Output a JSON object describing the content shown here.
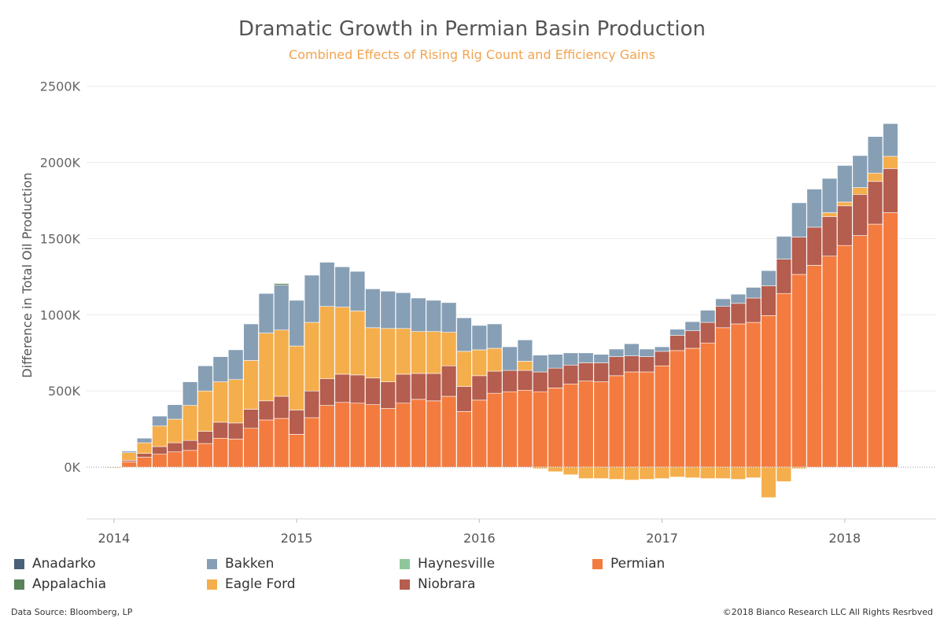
{
  "header": {
    "title": "Dramatic Growth in Permian Basin Production",
    "subtitle": "Combined Effects of Rising Rig Count and Efficiency Gains"
  },
  "footer": {
    "source": "Data Source: Bloomberg, LP",
    "copyright": "©2018 Bianco Research LLC  All Rights Resrbved"
  },
  "chart_data": {
    "type": "bar",
    "stacked": true,
    "title": "Dramatic Growth in Permian Basin Production",
    "subtitle": "Combined Effects of Rising Rig Count and Efficiency Gains",
    "ylabel": "Difference in Total Oil Production",
    "xlabel": "",
    "ylim": [
      -340,
      2550
    ],
    "yticks": [
      0,
      500,
      1000,
      1500,
      2000,
      2500
    ],
    "ytick_labels": [
      "0K",
      "500K",
      "1000K",
      "1500K",
      "2000K",
      "2500K"
    ],
    "xlim": [
      2013.85,
      2018.5
    ],
    "xticks": [
      2014,
      2015,
      2016,
      2017,
      2018
    ],
    "xtick_labels": [
      "2014",
      "2015",
      "2016",
      "2017",
      "2018"
    ],
    "grid": "horizontal",
    "legend_position": "bottom",
    "unit": "thousand barrels per day (K)",
    "x": [
      2014.0,
      2014.0833,
      2014.1667,
      2014.25,
      2014.3333,
      2014.4167,
      2014.5,
      2014.5833,
      2014.6667,
      2014.75,
      2014.8333,
      2014.9167,
      2015.0,
      2015.0833,
      2015.1667,
      2015.25,
      2015.3333,
      2015.4167,
      2015.5,
      2015.5833,
      2015.6667,
      2015.75,
      2015.8333,
      2015.9167,
      2016.0,
      2016.0833,
      2016.1667,
      2016.25,
      2016.3333,
      2016.4167,
      2016.5,
      2016.5833,
      2016.6667,
      2016.75,
      2016.8333,
      2016.9167,
      2017.0,
      2017.0833,
      2017.1667,
      2017.25,
      2017.3333,
      2017.4167,
      2017.5,
      2017.5833,
      2017.6667,
      2017.75,
      2017.8333,
      2017.9167,
      2018.0,
      2018.0833,
      2018.1667,
      2018.25,
      2018.3333
    ],
    "series": [
      {
        "name": "Permian",
        "color": "#f47b3f",
        "values": [
          0,
          35,
          65,
          85,
          100,
          110,
          155,
          190,
          185,
          255,
          310,
          320,
          215,
          325,
          405,
          425,
          420,
          410,
          385,
          420,
          445,
          435,
          465,
          365,
          440,
          485,
          495,
          505,
          495,
          520,
          545,
          565,
          560,
          600,
          625,
          625,
          665,
          765,
          780,
          815,
          915,
          940,
          950,
          995,
          1140,
          1265,
          1325,
          1385,
          1455,
          1520,
          1595,
          1670,
          0
        ]
      },
      {
        "name": "Niobrara",
        "color": "#b55d4e",
        "values": [
          0,
          10,
          25,
          50,
          60,
          65,
          80,
          105,
          105,
          125,
          125,
          145,
          160,
          175,
          175,
          185,
          185,
          175,
          175,
          190,
          170,
          180,
          200,
          165,
          160,
          145,
          140,
          130,
          130,
          130,
          125,
          120,
          125,
          125,
          105,
          100,
          95,
          100,
          115,
          135,
          140,
          135,
          160,
          195,
          225,
          245,
          250,
          260,
          260,
          270,
          280,
          290,
          0
        ]
      },
      {
        "name": "Haynesville",
        "color": "#8fc79a",
        "values": [
          0,
          0,
          0,
          0,
          0,
          0,
          0,
          0,
          0,
          0,
          0,
          0,
          0,
          0,
          0,
          0,
          0,
          0,
          0,
          0,
          0,
          0,
          0,
          0,
          0,
          0,
          0,
          0,
          0,
          0,
          0,
          0,
          0,
          0,
          0,
          0,
          0,
          0,
          0,
          0,
          0,
          0,
          0,
          0,
          0,
          0,
          0,
          0,
          0,
          0,
          0,
          0,
          0
        ]
      },
      {
        "name": "Eagle Ford",
        "color": "#f5ae4c",
        "values": [
          -5,
          50,
          70,
          135,
          155,
          230,
          265,
          265,
          285,
          320,
          445,
          435,
          420,
          450,
          475,
          440,
          420,
          330,
          350,
          300,
          275,
          275,
          220,
          230,
          170,
          150,
          0,
          60,
          -10,
          -30,
          -50,
          -75,
          -75,
          -80,
          -85,
          -80,
          -75,
          -65,
          -70,
          -75,
          -75,
          -80,
          -70,
          -200,
          -95,
          -10,
          0,
          25,
          25,
          45,
          55,
          80,
          0
        ]
      },
      {
        "name": "Bakken",
        "color": "#879fb5",
        "values": [
          0,
          10,
          30,
          65,
          95,
          155,
          165,
          165,
          195,
          240,
          260,
          295,
          300,
          310,
          290,
          265,
          260,
          255,
          245,
          235,
          220,
          205,
          195,
          220,
          160,
          160,
          155,
          140,
          110,
          90,
          80,
          65,
          55,
          50,
          80,
          50,
          30,
          40,
          60,
          80,
          50,
          60,
          70,
          100,
          150,
          225,
          250,
          225,
          240,
          210,
          240,
          215,
          0
        ]
      },
      {
        "name": "Appalachia",
        "color": "#5b8358",
        "values": [
          0,
          0,
          0,
          0,
          0,
          0,
          0,
          0,
          0,
          0,
          0,
          10,
          0,
          0,
          0,
          0,
          0,
          0,
          0,
          0,
          0,
          0,
          0,
          0,
          0,
          0,
          0,
          0,
          0,
          0,
          0,
          0,
          0,
          0,
          0,
          0,
          0,
          0,
          0,
          0,
          0,
          0,
          0,
          0,
          0,
          0,
          0,
          0,
          0,
          0,
          0,
          0,
          0
        ]
      },
      {
        "name": "Anadarko",
        "color": "#4a5f78",
        "values": [
          0,
          0,
          0,
          0,
          0,
          0,
          0,
          0,
          0,
          0,
          0,
          0,
          0,
          0,
          0,
          0,
          0,
          0,
          0,
          0,
          0,
          0,
          0,
          0,
          0,
          0,
          0,
          0,
          0,
          0,
          0,
          0,
          0,
          0,
          0,
          0,
          0,
          0,
          0,
          0,
          0,
          0,
          0,
          0,
          0,
          0,
          0,
          0,
          0,
          0,
          0,
          0,
          0
        ]
      }
    ]
  }
}
